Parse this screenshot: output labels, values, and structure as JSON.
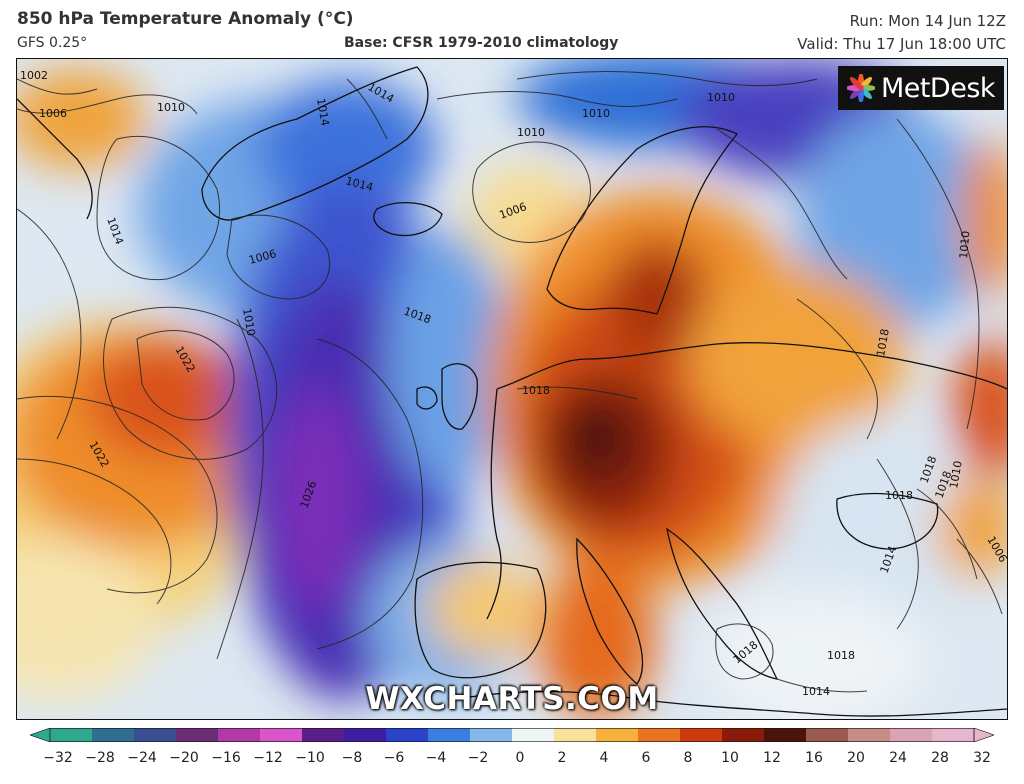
{
  "header": {
    "title": "850 hPa Temperature Anomaly (°C)",
    "model": "GFS 0.25°",
    "base": "Base: CFSR 1979-2010 climatology",
    "run": "Run: Mon 14 Jun 12Z",
    "valid": "Valid: Thu 17 Jun 18:00 UTC"
  },
  "branding": {
    "logo_text": "MetDesk",
    "watermark": "WXCHARTS.COM"
  },
  "isobar_labels": [
    "1002",
    "1006",
    "1010",
    "1014",
    "1014",
    "1010",
    "1010",
    "1006",
    "1014",
    "1014",
    "1006",
    "1010",
    "1010",
    "1010",
    "1018",
    "1018",
    "1018",
    "1018",
    "1018",
    "1018",
    "1022",
    "1022",
    "1026",
    "1018",
    "1014",
    "1018",
    "1014",
    "1010",
    "1006"
  ],
  "colorbar": {
    "ticks": [
      "−32",
      "−28",
      "−24",
      "−20",
      "−16",
      "−12",
      "−10",
      "−8",
      "−6",
      "−4",
      "−2",
      "0",
      "2",
      "4",
      "6",
      "8",
      "10",
      "12",
      "16",
      "20",
      "24",
      "28",
      "32"
    ],
    "colors": [
      "#2fa88e",
      "#2e6e8f",
      "#3a4f8f",
      "#6b2e76",
      "#b23aa7",
      "#d955c9",
      "#5a1f8a",
      "#3b1fa0",
      "#2b43c8",
      "#3c7ee0",
      "#86b7ea",
      "#eef3f6",
      "#f8e29a",
      "#f5b13c",
      "#e9731f",
      "#cc3b10",
      "#8a1a0a",
      "#4b140a",
      "#9a5a50",
      "#c88c86",
      "#d9a3b4",
      "#e5b6cc"
    ]
  }
}
